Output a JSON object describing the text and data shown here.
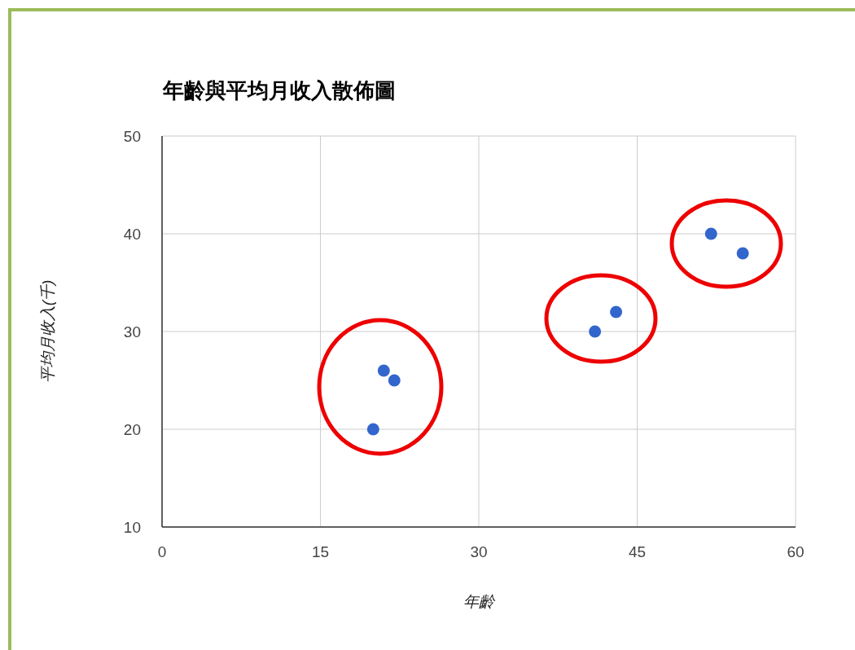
{
  "chart_data": {
    "type": "scatter",
    "title": "年齡與平均月收入散佈圖",
    "xlabel": "年齡",
    "ylabel": "平均月收入(千)",
    "x": [
      20,
      21,
      22,
      41,
      43,
      52,
      55
    ],
    "series": [
      {
        "color": "#3366cc",
        "values": [
          20,
          26,
          25,
          30,
          32,
          40,
          38
        ]
      }
    ],
    "xlim": [
      0,
      60
    ],
    "xticks": [
      0,
      15,
      30,
      45,
      60
    ],
    "ylim": [
      10,
      50
    ],
    "yticks": [
      10,
      20,
      30,
      40,
      50
    ],
    "grid": true,
    "marker": "circle"
  }
}
